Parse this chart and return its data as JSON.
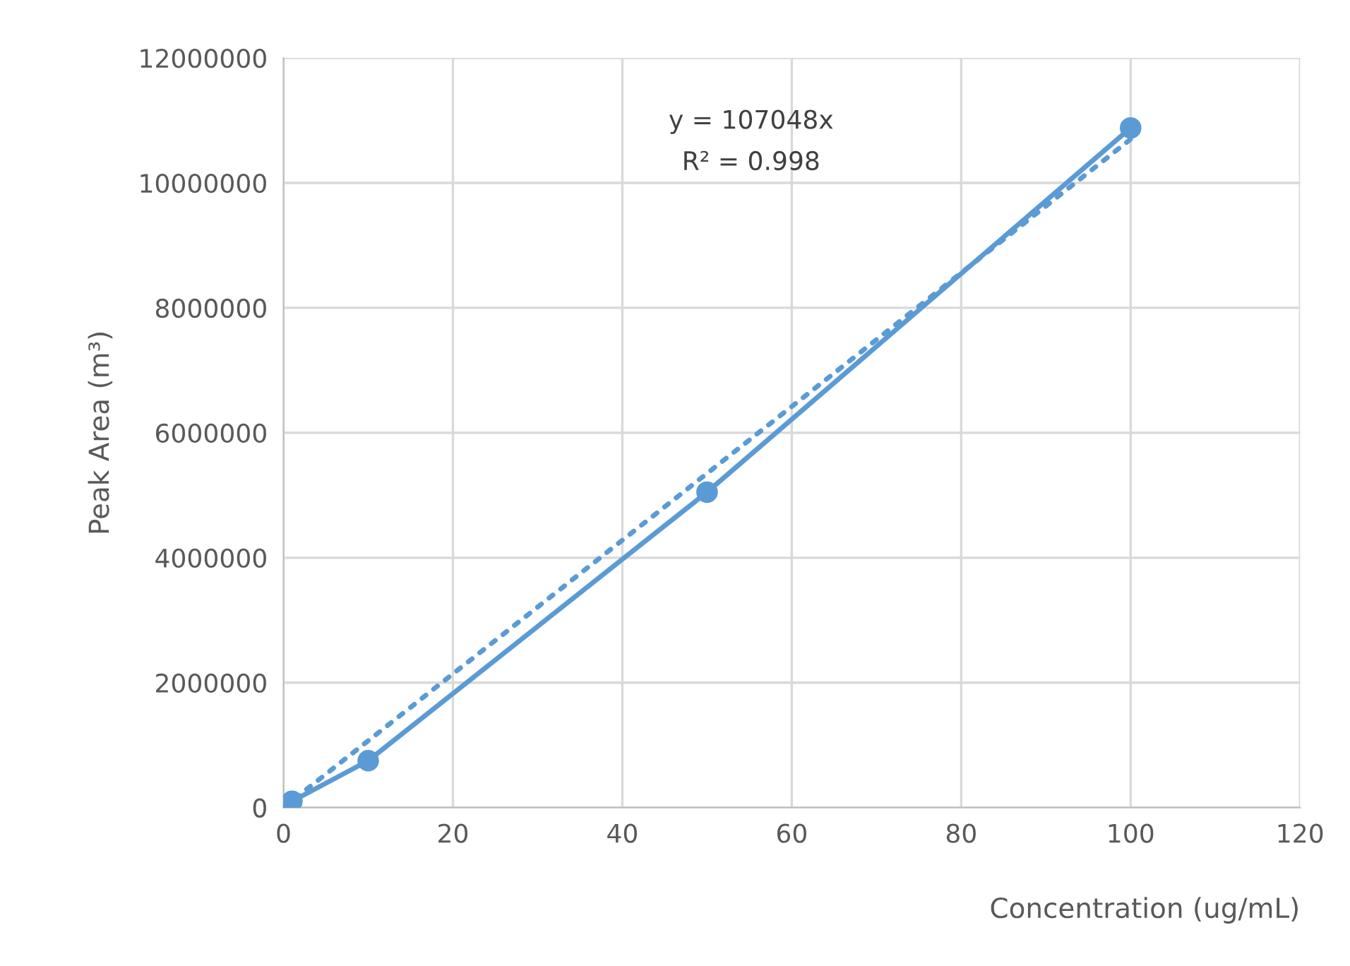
{
  "chart_data": {
    "type": "line",
    "xlabel": "Concentration (ug/mL)",
    "ylabel": "Peak Area (m³)",
    "xlim": [
      0,
      120
    ],
    "xticks": [
      0,
      20,
      40,
      60,
      80,
      100,
      120
    ],
    "ylim": [
      0,
      12000000
    ],
    "yticks": [
      0,
      2000000,
      4000000,
      6000000,
      8000000,
      10000000,
      12000000
    ],
    "grid": true,
    "legend": false,
    "series": [
      {
        "color": "#5b9bd5",
        "x": [
          0,
          0.5,
          1,
          10,
          50,
          100
        ],
        "values": [
          0,
          50000,
          100000,
          750000,
          5050000,
          10880000
        ],
        "marker": "circle",
        "line_style": "solid"
      },
      {
        "type": "line",
        "color": "#5b9bd5",
        "x": [
          0,
          100
        ],
        "values": [
          0,
          10700000
        ],
        "marker": "none",
        "line_style": "dotted"
      }
    ],
    "annotations": [
      "y = 107048x",
      "R² = 0.998"
    ]
  }
}
